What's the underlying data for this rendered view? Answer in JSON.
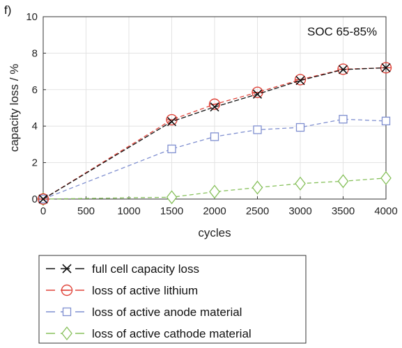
{
  "panel_label": "f)",
  "chart_data": {
    "type": "line",
    "xlabel": "cycles",
    "ylabel": "capacity loss / %",
    "annotation": "SOC 65-85%",
    "xlim": [
      0,
      4000
    ],
    "ylim": [
      0,
      10
    ],
    "xticks": [
      0,
      500,
      1000,
      1500,
      2000,
      2500,
      3000,
      3500,
      4000
    ],
    "yticks": [
      0,
      2,
      4,
      6,
      8,
      10
    ],
    "grid": true,
    "legend_position": "below-left",
    "x": [
      0,
      1500,
      2000,
      2500,
      3000,
      3500,
      4000
    ],
    "series": [
      {
        "name": "full cell capacity loss",
        "color": "#111111",
        "marker": "x-mark",
        "dash": "solid-dash",
        "values": [
          0,
          4.25,
          5.05,
          5.75,
          6.5,
          7.1,
          7.2
        ]
      },
      {
        "name": "loss of active lithium",
        "color": "#e0443a",
        "marker": "circle-bar",
        "dash": "dash",
        "values": [
          0,
          4.35,
          5.2,
          5.85,
          6.55,
          7.12,
          7.2
        ]
      },
      {
        "name": "loss of active anode material",
        "color": "#7f8fd0",
        "marker": "square",
        "dash": "dash",
        "values": [
          0,
          2.75,
          3.42,
          3.8,
          3.93,
          4.38,
          4.28
        ]
      },
      {
        "name": "loss of active cathode material",
        "color": "#86c05a",
        "marker": "diamond",
        "dash": "dash",
        "values": [
          0,
          0.1,
          0.4,
          0.63,
          0.85,
          0.98,
          1.15
        ]
      }
    ]
  }
}
